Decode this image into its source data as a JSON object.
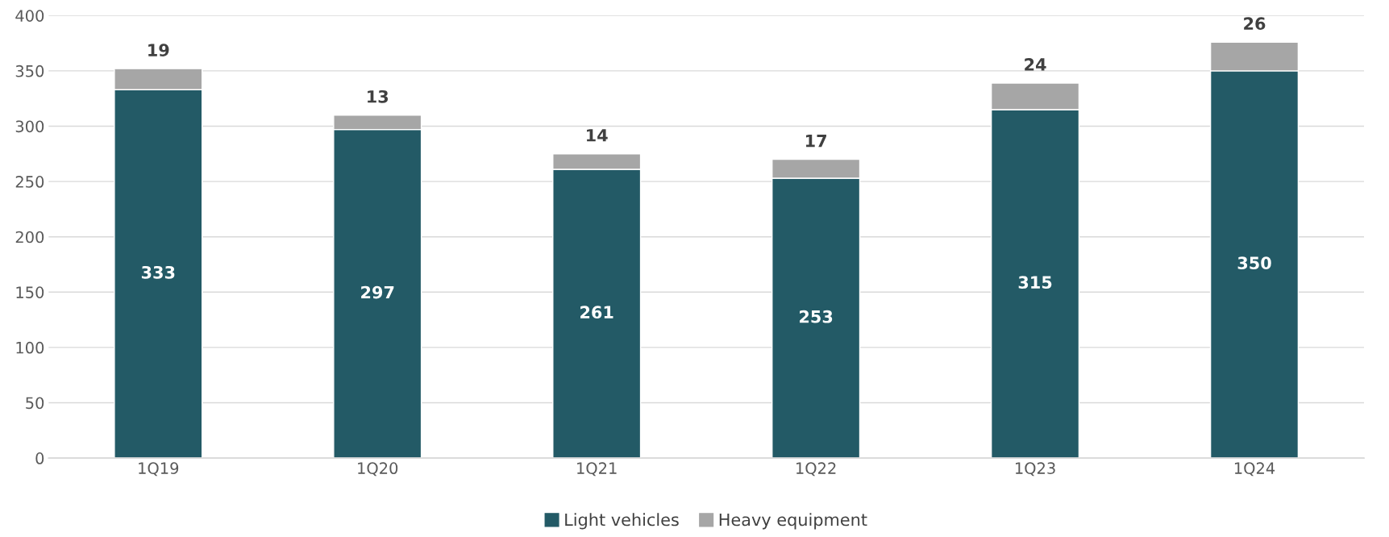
{
  "chart_data": {
    "type": "bar",
    "stacked": true,
    "categories": [
      "1Q19",
      "1Q20",
      "1Q21",
      "1Q22",
      "1Q23",
      "1Q24"
    ],
    "series": [
      {
        "name": "Light vehicles",
        "color": "#235a66",
        "values": [
          333,
          297,
          261,
          253,
          315,
          350
        ]
      },
      {
        "name": "Heavy equipment",
        "color": "#a6a6a6",
        "values": [
          19,
          13,
          14,
          17,
          24,
          26
        ]
      }
    ],
    "ylim": [
      0,
      400
    ],
    "yticks": [
      0,
      50,
      100,
      150,
      200,
      250,
      300,
      350,
      400
    ],
    "grid": "y",
    "legend": "bottom",
    "data_labels": true
  }
}
